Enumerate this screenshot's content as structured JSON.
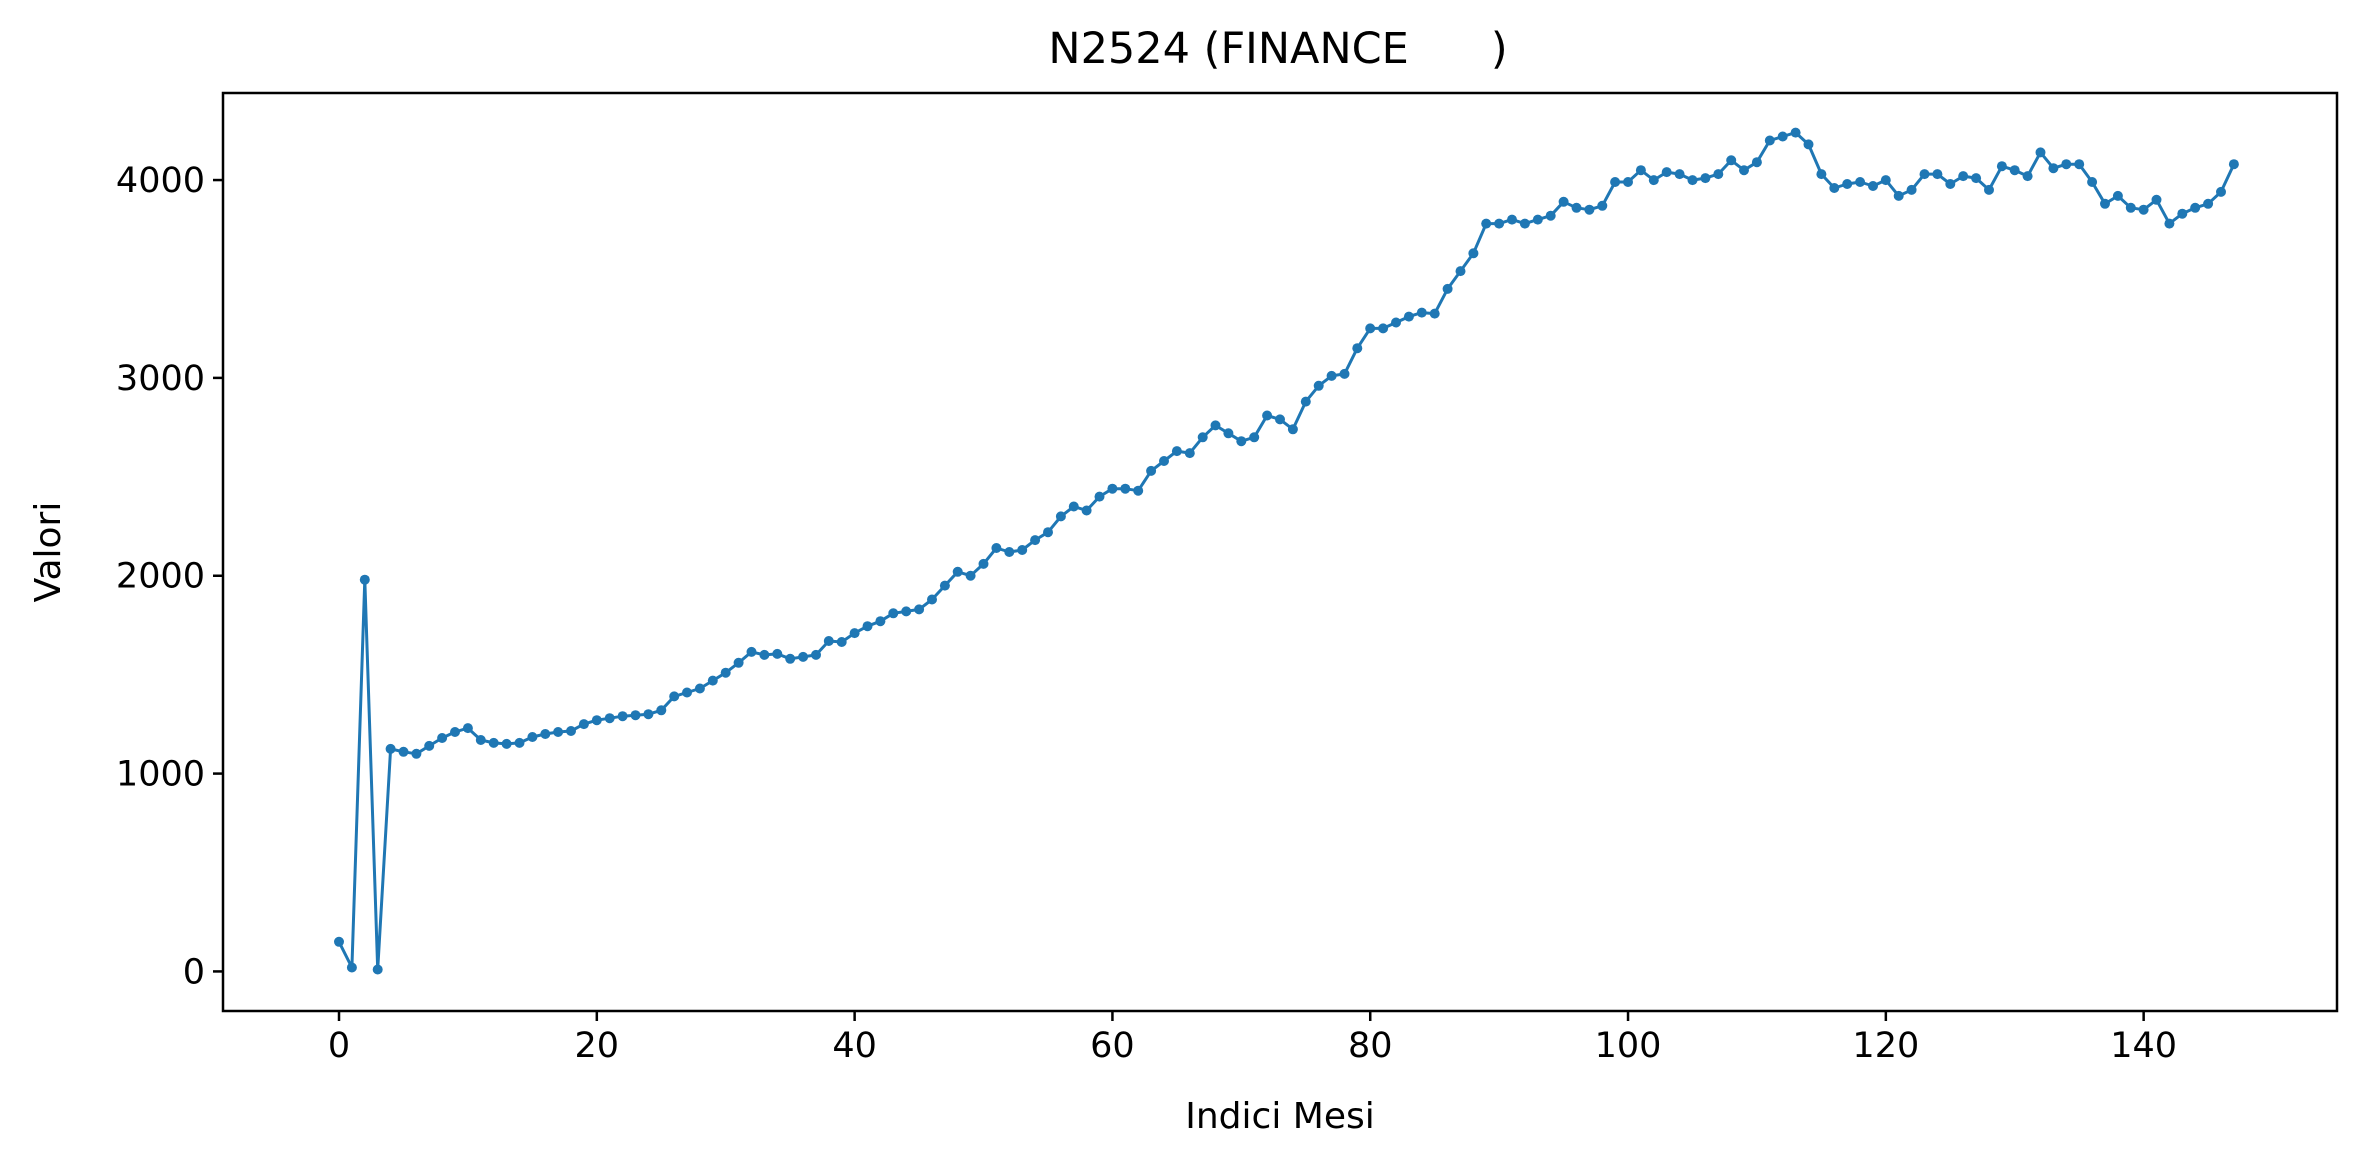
{
  "chart_data": {
    "type": "line",
    "title": "N2524 (FINANCE      )",
    "xlabel": "Indici Mesi",
    "ylabel": "Valori",
    "xlim": [
      -9,
      155
    ],
    "ylim": [
      -200,
      4440
    ],
    "xticks": [
      0,
      20,
      40,
      60,
      80,
      100,
      120,
      140
    ],
    "yticks": [
      0,
      1000,
      2000,
      3000,
      4000
    ],
    "grid": false,
    "color": "#1f77b4",
    "series": [
      {
        "x": [
          0,
          1,
          2,
          3,
          4,
          5,
          6,
          7,
          8,
          9,
          10,
          11,
          12,
          13,
          14,
          15,
          16,
          17,
          18,
          19,
          20,
          21,
          22,
          23,
          24,
          25,
          26,
          27,
          28,
          29,
          30,
          31,
          32,
          33,
          34,
          35,
          36,
          37,
          38,
          39,
          40,
          41,
          42,
          43,
          44,
          45,
          46,
          47,
          48,
          49,
          50,
          51,
          52,
          53,
          54,
          55,
          56,
          57,
          58,
          59,
          60,
          61,
          62,
          63,
          64,
          65,
          66,
          67,
          68,
          69,
          70,
          71,
          72,
          73,
          74,
          75,
          76,
          77,
          78,
          79,
          80,
          81,
          82,
          83,
          84,
          85,
          86,
          87,
          88,
          89,
          90,
          91,
          92,
          93,
          94,
          95,
          96,
          97,
          98,
          99,
          100,
          101,
          102,
          103,
          104,
          105,
          106,
          107,
          108,
          109,
          110,
          111,
          112,
          113,
          114,
          115,
          116,
          117,
          118,
          119,
          120,
          121,
          122,
          123,
          124,
          125,
          126,
          127,
          128,
          129,
          130,
          131,
          132,
          133,
          134,
          135,
          136,
          137,
          138,
          139,
          140,
          141,
          142,
          143,
          144,
          145,
          146,
          147
        ],
        "values": [
          150,
          20,
          1980,
          10,
          1125,
          1110,
          1100,
          1140,
          1180,
          1210,
          1230,
          1170,
          1155,
          1150,
          1155,
          1185,
          1200,
          1210,
          1215,
          1250,
          1270,
          1280,
          1290,
          1295,
          1300,
          1320,
          1390,
          1410,
          1430,
          1470,
          1510,
          1560,
          1615,
          1600,
          1605,
          1580,
          1590,
          1600,
          1670,
          1665,
          1710,
          1745,
          1770,
          1810,
          1820,
          1830,
          1880,
          1950,
          2020,
          2000,
          2060,
          2140,
          2120,
          2130,
          2180,
          2220,
          2300,
          2350,
          2330,
          2400,
          2440,
          2440,
          2430,
          2530,
          2580,
          2630,
          2620,
          2700,
          2760,
          2720,
          2680,
          2700,
          2810,
          2790,
          2740,
          2880,
          2960,
          3010,
          3020,
          3150,
          3250,
          3250,
          3280,
          3310,
          3330,
          3325,
          3450,
          3540,
          3630,
          3780,
          3780,
          3800,
          3780,
          3800,
          3820,
          3890,
          3860,
          3850,
          3870,
          3990,
          3990,
          4050,
          4000,
          4040,
          4030,
          4000,
          4010,
          4030,
          4100,
          4050,
          4090,
          4200,
          4220,
          4240,
          4180,
          4030,
          3960,
          3980,
          3990,
          3970,
          4000,
          3920,
          3950,
          4030,
          4030,
          3980,
          4020,
          4010,
          3950,
          4070,
          4050,
          4020,
          4140,
          4060,
          4080,
          4080,
          3990,
          3880,
          3920,
          3860,
          3850,
          3900,
          3780,
          3830,
          3860,
          3880,
          3940,
          4080
        ]
      }
    ]
  }
}
